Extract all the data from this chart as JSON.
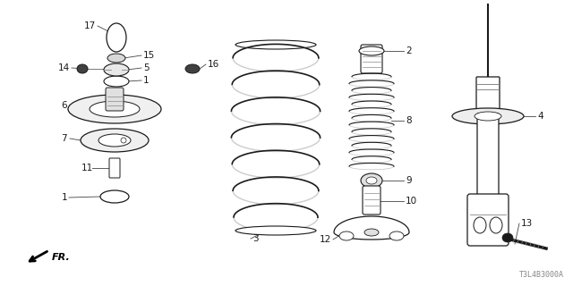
{
  "title": "",
  "part_code": "T3L4B3000A",
  "bg_color": "#ffffff",
  "lc": "#1a1a1a",
  "gray": "#888888",
  "lgray": "#cccccc",
  "dgray": "#444444",
  "figsize": [
    6.4,
    3.2
  ],
  "dpi": 100
}
